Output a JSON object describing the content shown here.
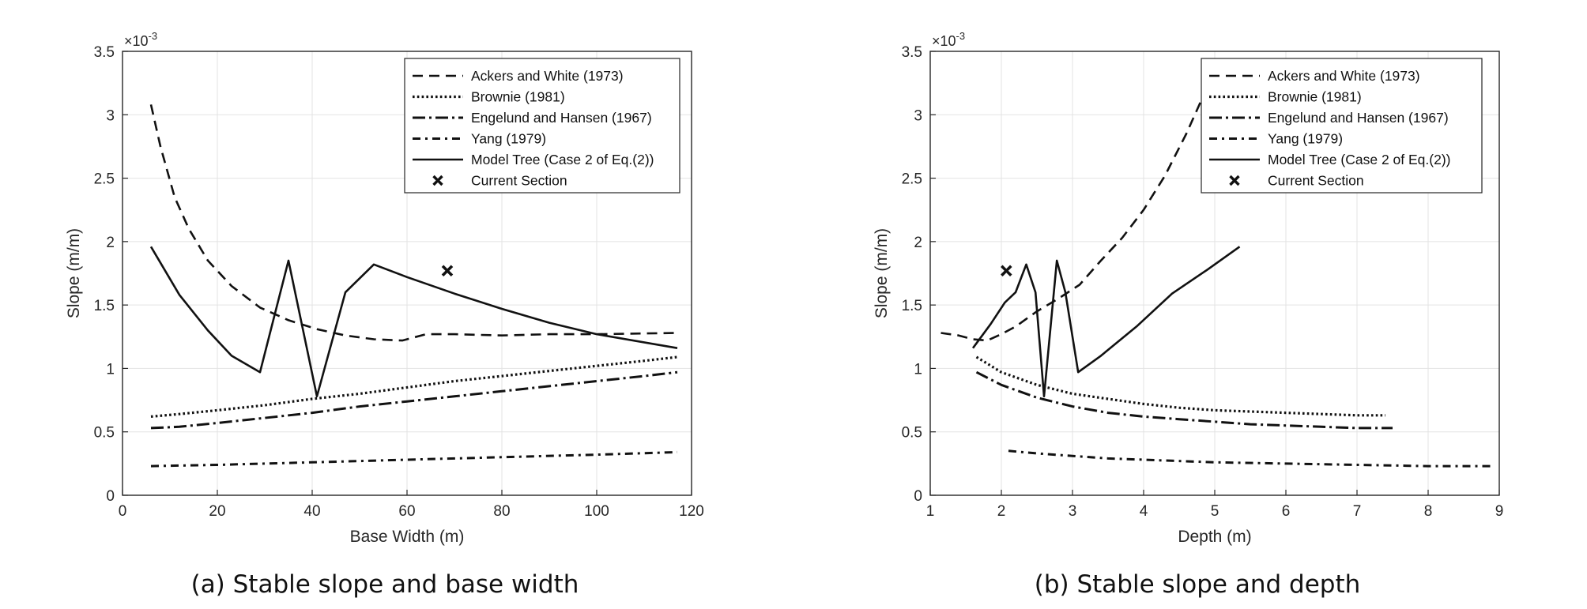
{
  "chart_data": [
    {
      "type": "line",
      "id": "a",
      "caption": "(a) Stable slope and base width",
      "xlabel": "Base Width (m)",
      "ylabel": "Slope (m/m)",
      "exponent_label": "×10",
      "exponent_power": "-3",
      "xlim": [
        0,
        120
      ],
      "ylim": [
        0,
        3.5
      ],
      "xticks": [
        0,
        20,
        40,
        60,
        80,
        100,
        120
      ],
      "yticks": [
        0,
        0.5,
        1,
        1.5,
        2,
        2.5,
        3,
        3.5
      ],
      "ytick_labels": [
        "0",
        "0.5",
        "1",
        "1.5",
        "2",
        "2.5",
        "3",
        "3.5"
      ],
      "grid": true,
      "legend_position": "top-right",
      "series": [
        {
          "name": "Ackers and White (1973)",
          "style": "dashed",
          "x": [
            6,
            8,
            11,
            14,
            18,
            23,
            29,
            35,
            41,
            47,
            53,
            59,
            64,
            70,
            80,
            90,
            100,
            117
          ],
          "y": [
            3.08,
            2.75,
            2.35,
            2.1,
            1.85,
            1.65,
            1.48,
            1.38,
            1.31,
            1.26,
            1.23,
            1.22,
            1.27,
            1.27,
            1.26,
            1.27,
            1.27,
            1.28
          ]
        },
        {
          "name": "Brownie (1981)",
          "style": "dotted",
          "x": [
            6,
            12,
            20,
            30,
            40,
            50,
            60,
            70,
            80,
            90,
            100,
            110,
            117
          ],
          "y": [
            0.62,
            0.64,
            0.67,
            0.71,
            0.76,
            0.8,
            0.85,
            0.9,
            0.94,
            0.98,
            1.02,
            1.06,
            1.09
          ]
        },
        {
          "name": "Engelund and Hansen (1967)",
          "style": "dashdot-long",
          "x": [
            6,
            12,
            20,
            30,
            40,
            50,
            60,
            70,
            80,
            90,
            100,
            110,
            117
          ],
          "y": [
            0.53,
            0.54,
            0.57,
            0.61,
            0.65,
            0.7,
            0.74,
            0.78,
            0.82,
            0.86,
            0.9,
            0.94,
            0.97
          ]
        },
        {
          "name": "Yang (1979)",
          "style": "dashdot",
          "x": [
            6,
            20,
            40,
            60,
            80,
            100,
            117
          ],
          "y": [
            0.23,
            0.24,
            0.26,
            0.28,
            0.3,
            0.32,
            0.34
          ]
        },
        {
          "name": "Model Tree (Case 2 of Eq.(2))",
          "style": "solid",
          "x": [
            6,
            12,
            18,
            23,
            29,
            35,
            41,
            47,
            53,
            60,
            70,
            80,
            90,
            100,
            117
          ],
          "y": [
            1.96,
            1.58,
            1.3,
            1.1,
            0.97,
            1.85,
            0.78,
            1.6,
            1.82,
            1.72,
            1.59,
            1.47,
            1.36,
            1.27,
            1.16
          ]
        },
        {
          "name": "Current Section",
          "style": "marker-x",
          "x": [
            68.5
          ],
          "y": [
            1.77
          ]
        }
      ]
    },
    {
      "type": "line",
      "id": "b",
      "caption": "(b) Stable slope and depth",
      "xlabel": "Depth (m)",
      "ylabel": "Slope (m/m)",
      "exponent_label": "×10",
      "exponent_power": "-3",
      "xlim": [
        1,
        9
      ],
      "ylim": [
        0,
        3.5
      ],
      "xticks": [
        1,
        2,
        3,
        4,
        5,
        6,
        7,
        8,
        9
      ],
      "yticks": [
        0,
        0.5,
        1,
        1.5,
        2,
        2.5,
        3,
        3.5
      ],
      "ytick_labels": [
        "0",
        "0.5",
        "1",
        "1.5",
        "2",
        "2.5",
        "3",
        "3.5"
      ],
      "grid": true,
      "legend_position": "top-right",
      "series": [
        {
          "name": "Ackers and White (1973)",
          "style": "dashed",
          "x": [
            1.15,
            1.4,
            1.6,
            1.8,
            2.0,
            2.2,
            2.5,
            2.8,
            3.1,
            3.4,
            3.7,
            4.0,
            4.3,
            4.6,
            4.8
          ],
          "y": [
            1.28,
            1.26,
            1.23,
            1.22,
            1.27,
            1.33,
            1.45,
            1.55,
            1.66,
            1.85,
            2.03,
            2.25,
            2.52,
            2.85,
            3.1
          ]
        },
        {
          "name": "Brownie (1981)",
          "style": "dotted",
          "x": [
            1.65,
            2.0,
            2.5,
            3.0,
            3.5,
            4.0,
            4.5,
            5.0,
            5.5,
            6.0,
            6.5,
            7.0,
            7.4
          ],
          "y": [
            1.09,
            0.97,
            0.87,
            0.8,
            0.76,
            0.72,
            0.69,
            0.67,
            0.66,
            0.65,
            0.64,
            0.63,
            0.63
          ]
        },
        {
          "name": "Engelund and Hansen (1967)",
          "style": "dashdot-long",
          "x": [
            1.65,
            2.0,
            2.5,
            3.0,
            3.5,
            4.0,
            4.5,
            5.0,
            5.5,
            6.0,
            6.5,
            7.0,
            7.5
          ],
          "y": [
            0.97,
            0.87,
            0.77,
            0.7,
            0.65,
            0.62,
            0.6,
            0.58,
            0.56,
            0.55,
            0.54,
            0.53,
            0.53
          ]
        },
        {
          "name": "Yang (1979)",
          "style": "dashdot",
          "x": [
            2.1,
            2.5,
            3.0,
            3.5,
            4.0,
            5.0,
            6.0,
            7.0,
            8.0,
            8.9
          ],
          "y": [
            0.35,
            0.33,
            0.31,
            0.29,
            0.28,
            0.26,
            0.25,
            0.24,
            0.23,
            0.23
          ]
        },
        {
          "name": "Model Tree (Case 2 of Eq.(2))",
          "style": "solid",
          "x": [
            1.6,
            1.85,
            2.05,
            2.2,
            2.35,
            2.48,
            2.6,
            2.78,
            2.9,
            3.08,
            3.4,
            3.9,
            4.4,
            4.9,
            5.35
          ],
          "y": [
            1.16,
            1.35,
            1.52,
            1.6,
            1.82,
            1.6,
            0.78,
            1.85,
            1.6,
            0.97,
            1.1,
            1.33,
            1.59,
            1.78,
            1.96
          ]
        },
        {
          "name": "Current Section",
          "style": "marker-x",
          "x": [
            2.07
          ],
          "y": [
            1.77
          ]
        }
      ]
    }
  ]
}
